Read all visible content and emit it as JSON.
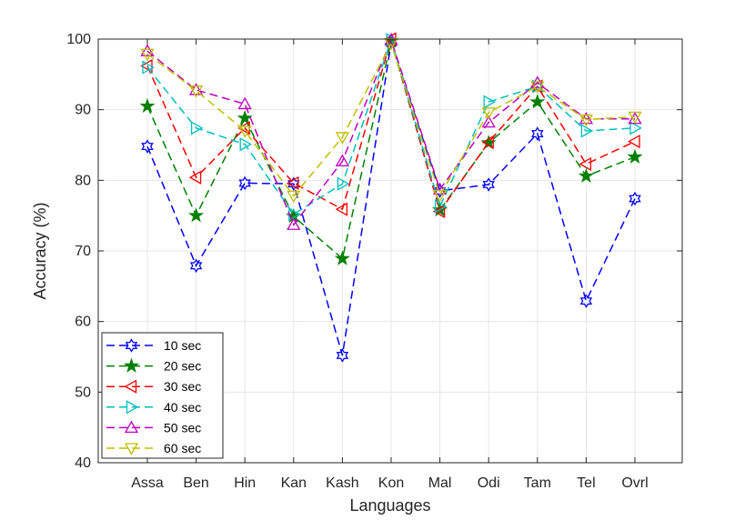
{
  "chart_data": {
    "type": "line",
    "title": "",
    "xlabel": "Languages",
    "ylabel": "Accuracy (%)",
    "ylim": [
      40,
      100
    ],
    "yticks": [
      40,
      50,
      60,
      70,
      80,
      90,
      100
    ],
    "grid": true,
    "legend_position": "bottom-left",
    "categories": [
      "Assa",
      "Ben",
      "Hin",
      "Kan",
      "Kash",
      "Kon",
      "Mal",
      "Odi",
      "Tam",
      "Tel",
      "Ovrl"
    ],
    "series": [
      {
        "name": "10 sec",
        "color": "#0000ff",
        "marker": "hexagram",
        "values": [
          84.8,
          67.9,
          79.6,
          79.5,
          55.2,
          99.5,
          78.5,
          79.4,
          86.6,
          62.9,
          77.4
        ]
      },
      {
        "name": "20 sec",
        "color": "#008000",
        "marker": "pentagram",
        "values": [
          90.5,
          75.0,
          88.8,
          74.9,
          68.9,
          99.7,
          75.8,
          85.3,
          91.1,
          80.6,
          83.3
        ]
      },
      {
        "name": "30 sec",
        "color": "#ff0000",
        "marker": "triangle-left",
        "values": [
          96.2,
          80.4,
          87.4,
          79.6,
          75.9,
          100.0,
          75.6,
          85.4,
          93.3,
          82.3,
          85.5
        ]
      },
      {
        "name": "40 sec",
        "color": "#00bfbf",
        "marker": "triangle-right",
        "values": [
          96.0,
          87.4,
          85.1,
          75.2,
          79.5,
          99.9,
          76.3,
          91.1,
          93.3,
          87.0,
          87.4
        ]
      },
      {
        "name": "50 sec",
        "color": "#bf00bf",
        "marker": "triangle-up",
        "values": [
          98.3,
          92.8,
          90.8,
          73.7,
          82.7,
          99.9,
          78.7,
          88.2,
          93.8,
          88.7,
          88.7
        ]
      },
      {
        "name": "60 sec",
        "color": "#bfbf00",
        "marker": "triangle-down",
        "values": [
          97.9,
          92.7,
          87.0,
          77.8,
          86.1,
          99.4,
          77.9,
          89.6,
          93.3,
          88.6,
          89.0
        ]
      }
    ]
  }
}
